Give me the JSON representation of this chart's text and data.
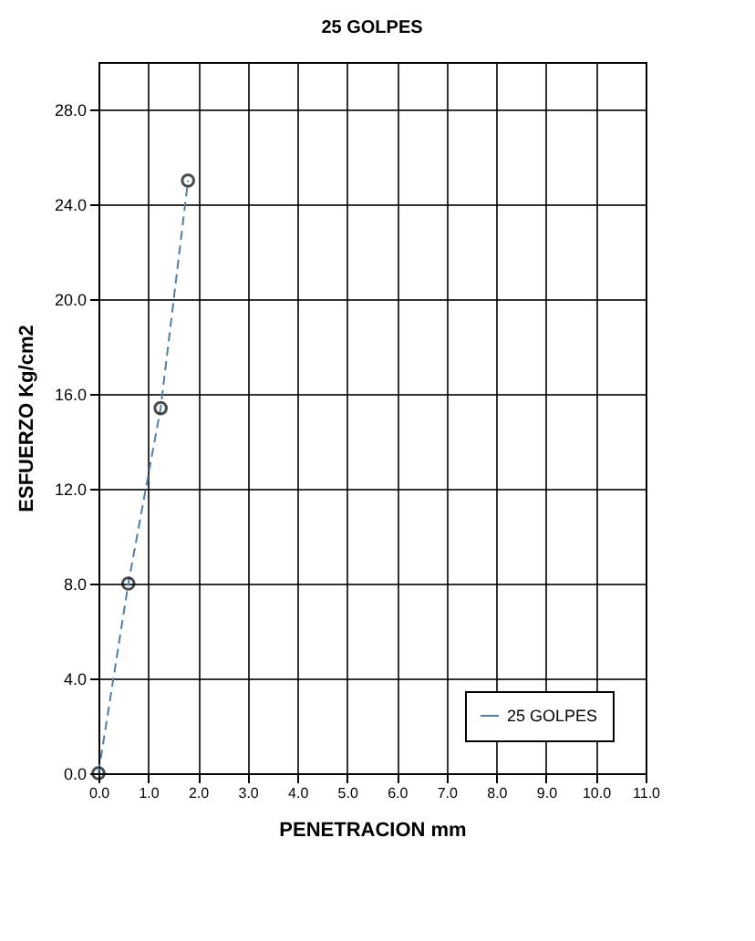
{
  "chart_data": {
    "type": "line",
    "title": "25 GOLPES",
    "xlabel": "PENETRACION mm",
    "ylabel": "ESFUERZO Kg/cm2",
    "x": [
      0,
      0.6,
      1.25,
      1.8
    ],
    "series": [
      {
        "name": "25 GOLPES",
        "color": "#4f7fa8",
        "values": [
          0,
          8.0,
          15.4,
          25.0
        ]
      }
    ],
    "xlim": [
      0,
      11
    ],
    "xticks": [
      {
        "value": 0,
        "label": "0.0"
      },
      {
        "value": 1,
        "label": "1.0"
      },
      {
        "value": 2,
        "label": "2.0"
      },
      {
        "value": 3,
        "label": "3.0"
      },
      {
        "value": 4,
        "label": "4.0"
      },
      {
        "value": 5,
        "label": "5.0"
      },
      {
        "value": 6,
        "label": "6.0"
      },
      {
        "value": 7,
        "label": "7.0"
      },
      {
        "value": 8,
        "label": "8.0"
      },
      {
        "value": 9,
        "label": "9.0"
      },
      {
        "value": 10,
        "label": "10.0"
      },
      {
        "value": 11,
        "label": "11.0"
      }
    ],
    "ylim": [
      0,
      30
    ],
    "yticks": [
      {
        "value": 0,
        "label": "0.0"
      },
      {
        "value": 4,
        "label": "4.0"
      },
      {
        "value": 8,
        "label": "8.0"
      },
      {
        "value": 12,
        "label": "12.0"
      },
      {
        "value": 16,
        "label": "16.0"
      },
      {
        "value": 20,
        "label": "20.0"
      },
      {
        "value": 24,
        "label": "24.0"
      },
      {
        "value": 28,
        "label": "28.0"
      }
    ],
    "grid": true,
    "legend": "bottom right",
    "marker": "circle",
    "line_style": "dashed"
  }
}
